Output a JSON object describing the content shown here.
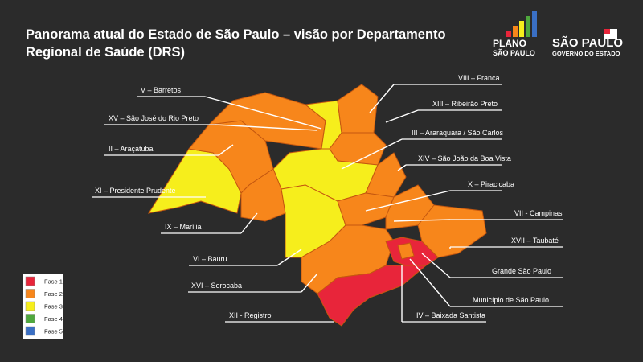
{
  "header": {
    "title_line1": "Panorama atual do Estado de São Paulo – visão por Departamento",
    "title_line2": "Regional de Saúde (DRS)"
  },
  "logos": {
    "plano": "PLANO",
    "plano_sub": "SÃO PAULO",
    "gov": "SÃO PAULO",
    "gov_sub": "GOVERNO DO ESTADO"
  },
  "regions": [
    "V – Barretos",
    "XV – São José do Rio Preto",
    "II – Araçatuba",
    "XI – Presidente Prudente",
    "IX – Marília",
    "VI – Bauru",
    "XVI – Sorocaba",
    "XII - Registro",
    "VIII – Franca",
    "XIII – Ribeirão Preto",
    "III – Araraquara / São Carlos",
    "XIV – São João da Boa Vista",
    "X – Piracicaba",
    "VII - Campinas",
    "XVII – Taubaté",
    "Grande São Paulo",
    "Município de São Paulo",
    "IV – Baixada Santista"
  ],
  "legend": [
    {
      "label": "Fase 1",
      "color": "#e8253a"
    },
    {
      "label": "Fase 2",
      "color": "#f7861b"
    },
    {
      "label": "Fase 3",
      "color": "#f6ee1c"
    },
    {
      "label": "Fase 4",
      "color": "#4fa83d"
    },
    {
      "label": "Fase 5",
      "color": "#3a6fc4"
    }
  ]
}
